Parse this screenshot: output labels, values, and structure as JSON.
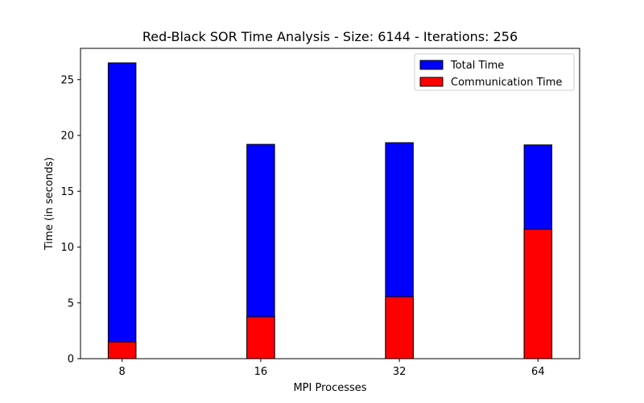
{
  "chart_data": {
    "type": "bar",
    "title": "Red-Black SOR Time Analysis - Size: 6144 - Iterations: 256",
    "xlabel": "MPI Processes",
    "ylabel": "Time (in seconds)",
    "categories": [
      "8",
      "16",
      "32",
      "64"
    ],
    "series": [
      {
        "name": "Total Time",
        "color": "#0000ff",
        "values": [
          26.5,
          19.2,
          19.35,
          19.15
        ]
      },
      {
        "name": "Communication Time",
        "color": "#ff0000",
        "values": [
          1.5,
          3.75,
          5.55,
          11.6
        ]
      }
    ],
    "ylim": [
      0,
      27.8
    ],
    "yticks": [
      0,
      5,
      10,
      15,
      20,
      25
    ],
    "grid": false,
    "legend": "top-right"
  }
}
